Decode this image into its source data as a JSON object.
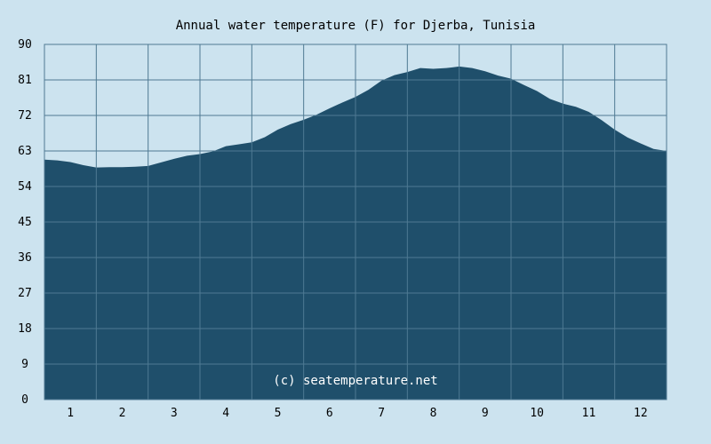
{
  "chart_data": {
    "type": "area",
    "title": "Annual water temperature (F) for Djerba, Tunisia",
    "xlabel": "",
    "ylabel": "",
    "ylim": [
      0,
      90
    ],
    "xlim": [
      0.5,
      12.5
    ],
    "y_ticks": [
      "0",
      "9",
      "18",
      "27",
      "36",
      "45",
      "54",
      "63",
      "72",
      "81",
      "90"
    ],
    "x_ticks": [
      "1",
      "2",
      "3",
      "4",
      "5",
      "6",
      "7",
      "8",
      "9",
      "10",
      "11",
      "12"
    ],
    "grid": true,
    "watermark": "(c) seatemperature.net",
    "series": [
      {
        "x": [
          0.5,
          0.75,
          1.0,
          1.25,
          1.5,
          1.75,
          2.0,
          2.25,
          2.5,
          2.75,
          3.0,
          3.25,
          3.5,
          3.75,
          4.0,
          4.25,
          4.5,
          4.75,
          5.0,
          5.25,
          5.5,
          5.75,
          6.0,
          6.25,
          6.5,
          6.75,
          7.0,
          7.25,
          7.5,
          7.75,
          8.0,
          8.25,
          8.5,
          8.75,
          9.0,
          9.25,
          9.5,
          9.75,
          10.0,
          10.25,
          10.5,
          10.75,
          11.0,
          11.25,
          11.5,
          11.75,
          12.0,
          12.25,
          12.5
        ],
        "values": [
          60.8,
          60.6,
          60.2,
          59.4,
          58.8,
          58.9,
          58.9,
          59.0,
          59.2,
          60.1,
          61.0,
          61.8,
          62.2,
          62.9,
          64.2,
          64.7,
          65.2,
          66.5,
          68.4,
          69.8,
          70.9,
          72.2,
          73.8,
          75.3,
          76.7,
          78.5,
          80.8,
          82.2,
          83.0,
          84.0,
          83.8,
          84.0,
          84.4,
          84.0,
          83.2,
          82.1,
          81.3,
          79.7,
          78.2,
          76.2,
          75.0,
          74.2,
          72.9,
          70.8,
          68.4,
          66.4,
          64.9,
          63.5,
          63.0
        ]
      }
    ],
    "colors": {
      "background": "#cce3ef",
      "plot_background": "#cce3ef",
      "area_fill": "#1f4f6b",
      "grid": "#4f7a93",
      "watermark": "#ffffff"
    }
  }
}
